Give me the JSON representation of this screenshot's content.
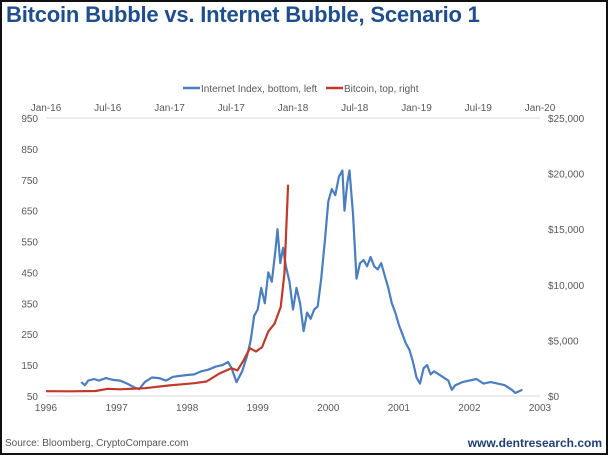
{
  "title": "Bitcoin Bubble vs. Internet Bubble, Scenario 1",
  "source": "Source: Bloomberg, CryptoCompare.com",
  "brand": "www.dentresearch.com",
  "colors": {
    "internet": "#4a7ebf",
    "bitcoin": "#c0392b",
    "title": "#1f4e8c",
    "grid": "#d9d9d9"
  },
  "chart_data": {
    "type": "line",
    "title": "Bitcoin Bubble vs. Internet Bubble, Scenario 1",
    "legend": {
      "placement": "top",
      "entries": [
        "Internet Index, bottom, left",
        "Bitcoin, top, right"
      ]
    },
    "axes": {
      "bottom": {
        "label": "",
        "range": [
          1996,
          2003
        ],
        "ticks": [
          "1996",
          "1997",
          "1998",
          "1999",
          "2000",
          "2001",
          "2002",
          "2003"
        ]
      },
      "top": {
        "label": "",
        "range": [
          2016.0,
          2020.0
        ],
        "ticks": [
          "Jan-16",
          "Jul-16",
          "Jan-17",
          "Jul-17",
          "Jan-18",
          "Jul-18",
          "Jan-19",
          "Jul-19",
          "Jan-20"
        ]
      },
      "left": {
        "label": "",
        "range": [
          50,
          950
        ],
        "ticks": [
          "950",
          "850",
          "750",
          "650",
          "550",
          "450",
          "350",
          "250",
          "150",
          "50"
        ]
      },
      "right": {
        "label": "",
        "range": [
          0,
          25000
        ],
        "ticks": [
          "$25,000",
          "$20,000",
          "$15,000",
          "$10,000",
          "$5,000",
          "$0"
        ]
      }
    },
    "grid": false,
    "series": [
      {
        "name": "Internet Index, bottom, left",
        "axis": "bottom-left",
        "x": [
          1996.5,
          1996.55,
          1996.6,
          1996.68,
          1996.75,
          1996.85,
          1996.95,
          1997.05,
          1997.15,
          1997.25,
          1997.32,
          1997.4,
          1997.5,
          1997.6,
          1997.7,
          1997.8,
          1997.9,
          1998.0,
          1998.1,
          1998.2,
          1998.3,
          1998.4,
          1998.5,
          1998.58,
          1998.63,
          1998.7,
          1998.78,
          1998.85,
          1998.9,
          1998.95,
          1999.0,
          1999.05,
          1999.1,
          1999.15,
          1999.2,
          1999.25,
          1999.28,
          1999.32,
          1999.36,
          1999.4,
          1999.45,
          1999.5,
          1999.55,
          1999.6,
          1999.65,
          1999.7,
          1999.75,
          1999.8,
          1999.85,
          1999.9,
          1999.95,
          2000.0,
          2000.05,
          2000.1,
          2000.15,
          2000.2,
          2000.23,
          2000.27,
          2000.3,
          2000.35,
          2000.4,
          2000.45,
          2000.5,
          2000.55,
          2000.6,
          2000.65,
          2000.7,
          2000.75,
          2000.8,
          2000.85,
          2000.9,
          2000.95,
          2001.0,
          2001.05,
          2001.1,
          2001.15,
          2001.2,
          2001.25,
          2001.3,
          2001.35,
          2001.4,
          2001.45,
          2001.5,
          2001.6,
          2001.7,
          2001.75,
          2001.8,
          2001.9,
          2002.0,
          2002.1,
          2002.2,
          2002.3,
          2002.4,
          2002.5,
          2002.6,
          2002.65,
          2002.7,
          2002.75
        ],
        "values": [
          95,
          85,
          100,
          105,
          100,
          108,
          102,
          100,
          90,
          78,
          72,
          95,
          110,
          108,
          100,
          112,
          115,
          118,
          120,
          130,
          135,
          145,
          150,
          160,
          140,
          95,
          130,
          180,
          230,
          310,
          330,
          400,
          350,
          450,
          420,
          520,
          590,
          480,
          530,
          470,
          420,
          330,
          400,
          350,
          260,
          320,
          300,
          330,
          340,
          430,
          550,
          680,
          720,
          700,
          760,
          780,
          650,
          740,
          780,
          640,
          430,
          480,
          490,
          470,
          500,
          470,
          460,
          480,
          440,
          400,
          350,
          320,
          280,
          250,
          220,
          200,
          160,
          110,
          90,
          140,
          150,
          120,
          130,
          115,
          100,
          70,
          85,
          95,
          100,
          105,
          90,
          95,
          90,
          85,
          70,
          60,
          65,
          70
        ]
      },
      {
        "name": "Bitcoin, top, right",
        "axis": "top-right",
        "x": [
          2016.0,
          2016.2,
          2016.4,
          2016.5,
          2016.6,
          2016.8,
          2017.0,
          2017.1,
          2017.2,
          2017.3,
          2017.4,
          2017.5,
          2017.55,
          2017.6,
          2017.65,
          2017.7,
          2017.75,
          2017.8,
          2017.85,
          2017.9,
          2017.93,
          2017.96
        ],
        "values": [
          430,
          420,
          450,
          650,
          600,
          700,
          950,
          1050,
          1150,
          1300,
          2000,
          2500,
          2300,
          3200,
          4300,
          4000,
          4400,
          5800,
          6500,
          8000,
          11000,
          19000
        ]
      }
    ]
  }
}
